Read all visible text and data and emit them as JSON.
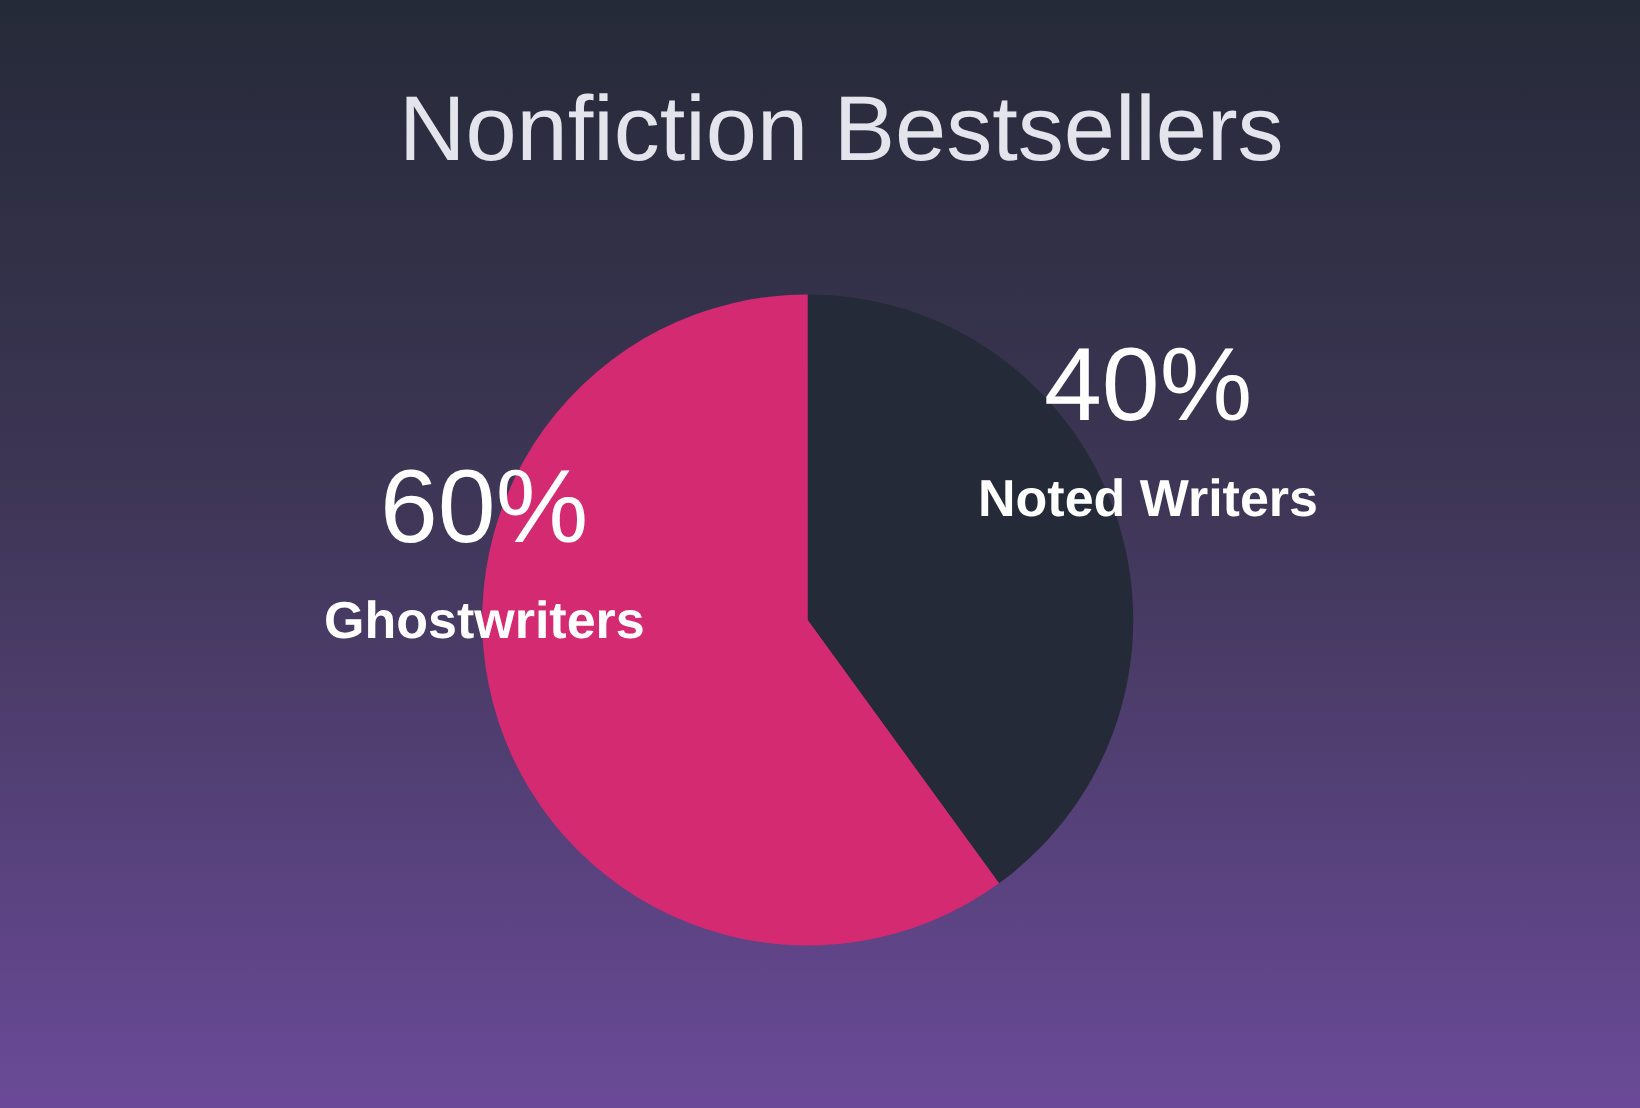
{
  "chart_data": {
    "type": "pie",
    "title": "Nonfiction Bestsellers",
    "categories": [
      "Noted Writers",
      "Ghostwriters"
    ],
    "values": [
      40,
      60
    ],
    "value_labels": [
      "40%",
      "60%"
    ],
    "colors": [
      "#252a38",
      "#d42a72"
    ],
    "legend": false
  }
}
